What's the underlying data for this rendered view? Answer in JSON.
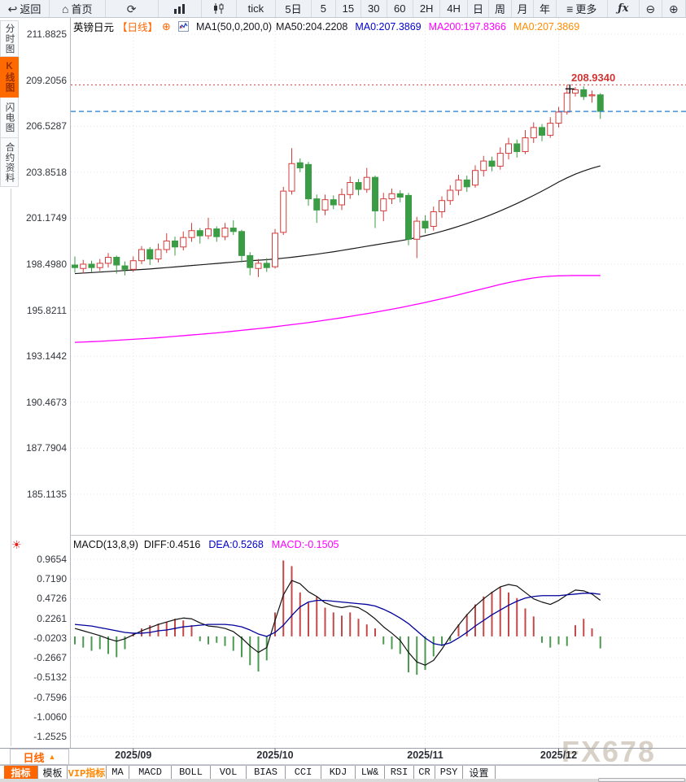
{
  "icons": {
    "back": "↩",
    "home": "⌂",
    "refresh": "⟳",
    "menu": "≡",
    "fx": "ƒx",
    "zoom_out": "⊖",
    "zoom_in": "⊕",
    "add_circle": "⊕",
    "triangle_up": "▲",
    "sun": "☀"
  },
  "toolbar": {
    "items": [
      {
        "name": "back-button",
        "icon": "back",
        "label": "返回"
      },
      {
        "name": "home-button",
        "icon": "home",
        "label": "首页"
      },
      {
        "name": "refresh-button",
        "icon": "refresh",
        "label": ""
      },
      {
        "name": "bar-chart-button",
        "svg": "bars",
        "label": ""
      },
      {
        "name": "candlestick-button",
        "svg": "candles",
        "label": ""
      },
      {
        "name": "period-tick",
        "label": "tick"
      },
      {
        "name": "period-5d",
        "label": "5日"
      },
      {
        "name": "period-5",
        "label": "5"
      },
      {
        "name": "period-15",
        "label": "15"
      },
      {
        "name": "period-30",
        "label": "30"
      },
      {
        "name": "period-60",
        "label": "60"
      },
      {
        "name": "period-2h",
        "label": "2H"
      },
      {
        "name": "period-4h",
        "label": "4H"
      },
      {
        "name": "period-day",
        "label": "日"
      },
      {
        "name": "period-week",
        "label": "周"
      },
      {
        "name": "period-month",
        "label": "月"
      },
      {
        "name": "period-year",
        "label": "年"
      },
      {
        "name": "more-button",
        "icon": "menu",
        "label": "更多"
      },
      {
        "name": "fx-indicator-button",
        "icon": "fx",
        "label": ""
      },
      {
        "name": "zoom-out-button",
        "icon": "zoom_out",
        "label": ""
      },
      {
        "name": "zoom-in-button",
        "icon": "zoom_in",
        "label": ""
      }
    ]
  },
  "sidebar": {
    "tabs": [
      {
        "label": "分时图",
        "active": false
      },
      {
        "label": "K线图",
        "active": true
      },
      {
        "label": "闪电图",
        "active": false
      },
      {
        "label": "合约资料",
        "active": false
      }
    ]
  },
  "chart_header": {
    "symbol": "英镑日元",
    "period_tag": "【日线】",
    "ma_settings": "MA1(50,0,200,0)",
    "ma50_label": "MA50:204.2208",
    "ma0_blue_label": "MA0:207.3869",
    "ma200_label": "MA200:197.8366",
    "ma0_orange_label": "MA0:207.3869"
  },
  "price_marker": {
    "high_label": "208.9340"
  },
  "macd_header": {
    "name": "MACD(13,8,9)",
    "diff_label": "DIFF:0.4516",
    "dea_label": "DEA:0.5268",
    "macd_label": "MACD:-0.1505"
  },
  "bottom": {
    "period_selector": "日线",
    "indicator_tabs": [
      {
        "label": "指标",
        "active": true
      },
      {
        "label": "模板"
      },
      {
        "label": "VIP指标",
        "vip": true
      },
      {
        "label": "MA"
      },
      {
        "label": "MACD"
      },
      {
        "label": "BOLL"
      },
      {
        "label": "VOL"
      },
      {
        "label": "BIAS"
      },
      {
        "label": "CCI"
      },
      {
        "label": "KDJ"
      },
      {
        "label": "LW&"
      },
      {
        "label": "RSI"
      },
      {
        "label": "CR"
      },
      {
        "label": "PSY"
      },
      {
        "label": "设置"
      }
    ]
  },
  "watermark": "FX678",
  "colors": {
    "accent_orange": "#ff6600",
    "up_red": "#d43c3c",
    "down_green": "#3a9c44",
    "ma50_black": "#1a1a1a",
    "ma200_magenta": "#ff00ff",
    "dea_blue": "#00009a",
    "last_price_blue": "#2f86d6",
    "grid": "#e7e4e6"
  },
  "chart_data": {
    "type": "candlestick",
    "title": "英镑日元 日线 (GBP/JPY Daily) with MACD(13,8,9)",
    "x_labels": [
      "2025/09",
      "2025/10",
      "2025/11",
      "2025/12"
    ],
    "y_ticks_main": [
      "211.8825",
      "209.2056",
      "206.5287",
      "203.8518",
      "201.1749",
      "198.4980",
      "195.8211",
      "193.1442",
      "190.4673",
      "187.7904",
      "185.1135"
    ],
    "y_ticks_macd": [
      "0.9654",
      "0.7190",
      "0.4726",
      "0.2261",
      "-0.0203",
      "-0.2667",
      "-0.5132",
      "-0.7596",
      "-1.0060",
      "-1.2525"
    ],
    "ylim_main": [
      185.1135,
      211.8825
    ],
    "ylim_macd": [
      -1.2525,
      0.9654
    ],
    "last_price": 207.3869,
    "high_marker": 208.934,
    "ma50_last": 204.2208,
    "ma200_last": 197.8366,
    "candles": [
      [
        198.45,
        198.95,
        198.0,
        198.3
      ],
      [
        198.25,
        198.75,
        197.95,
        198.5
      ],
      [
        198.5,
        198.7,
        198.05,
        198.3
      ],
      [
        198.3,
        198.8,
        198.1,
        198.55
      ],
      [
        198.55,
        199.15,
        198.3,
        198.9
      ],
      [
        198.9,
        199.0,
        197.95,
        198.45
      ],
      [
        198.4,
        198.65,
        197.85,
        198.2
      ],
      [
        198.2,
        198.95,
        198.05,
        198.7
      ],
      [
        198.7,
        199.55,
        198.5,
        199.35
      ],
      [
        199.35,
        199.5,
        198.45,
        198.8
      ],
      [
        198.8,
        199.7,
        198.6,
        199.35
      ],
      [
        199.35,
        200.3,
        199.15,
        199.85
      ],
      [
        199.85,
        200.1,
        199.0,
        199.5
      ],
      [
        199.5,
        200.4,
        199.3,
        200.05
      ],
      [
        200.05,
        200.9,
        199.8,
        200.45
      ],
      [
        200.45,
        200.6,
        199.7,
        200.15
      ],
      [
        200.15,
        201.2,
        199.95,
        200.55
      ],
      [
        200.55,
        200.7,
        199.8,
        200.1
      ],
      [
        200.1,
        200.9,
        199.9,
        200.6
      ],
      [
        200.6,
        201.05,
        200.2,
        200.4
      ],
      [
        200.4,
        200.5,
        198.6,
        199.0
      ],
      [
        199.0,
        199.2,
        197.85,
        198.3
      ],
      [
        198.25,
        198.8,
        197.75,
        198.55
      ],
      [
        198.55,
        198.85,
        198.05,
        198.3
      ],
      [
        198.35,
        200.55,
        198.25,
        200.3
      ],
      [
        200.35,
        203.0,
        200.2,
        202.75
      ],
      [
        202.75,
        205.25,
        202.55,
        204.35
      ],
      [
        204.4,
        204.65,
        203.85,
        204.1
      ],
      [
        204.3,
        204.45,
        201.9,
        202.3
      ],
      [
        202.3,
        202.55,
        200.9,
        201.65
      ],
      [
        201.65,
        202.55,
        201.35,
        202.25
      ],
      [
        202.25,
        202.5,
        201.7,
        201.95
      ],
      [
        201.95,
        202.9,
        201.65,
        202.55
      ],
      [
        202.55,
        203.6,
        202.3,
        203.25
      ],
      [
        203.25,
        203.45,
        202.5,
        202.85
      ],
      [
        202.85,
        204.1,
        202.65,
        203.55
      ],
      [
        203.55,
        203.65,
        200.6,
        201.6
      ],
      [
        201.6,
        202.65,
        201.0,
        202.3
      ],
      [
        202.3,
        202.9,
        202.0,
        202.6
      ],
      [
        202.6,
        202.8,
        202.1,
        202.4
      ],
      [
        202.5,
        202.65,
        199.6,
        199.95
      ],
      [
        199.95,
        201.25,
        198.85,
        201.0
      ],
      [
        201.0,
        201.35,
        200.3,
        200.6
      ],
      [
        200.7,
        201.85,
        200.45,
        201.55
      ],
      [
        201.55,
        202.45,
        201.2,
        202.2
      ],
      [
        202.2,
        203.1,
        201.95,
        202.8
      ],
      [
        202.8,
        203.7,
        202.5,
        203.4
      ],
      [
        203.4,
        203.65,
        202.7,
        203.0
      ],
      [
        203.1,
        204.25,
        202.95,
        203.95
      ],
      [
        203.95,
        204.8,
        203.6,
        204.5
      ],
      [
        204.5,
        204.75,
        203.9,
        204.2
      ],
      [
        204.2,
        205.3,
        204.0,
        204.95
      ],
      [
        204.95,
        205.85,
        204.6,
        205.5
      ],
      [
        205.5,
        205.75,
        204.7,
        205.05
      ],
      [
        205.05,
        206.3,
        204.9,
        205.85
      ],
      [
        205.85,
        206.75,
        205.55,
        206.45
      ],
      [
        206.45,
        206.65,
        205.65,
        206.0
      ],
      [
        206.0,
        207.05,
        205.85,
        206.7
      ],
      [
        206.7,
        207.65,
        206.45,
        207.35
      ],
      [
        207.35,
        208.934,
        207.2,
        208.45
      ],
      [
        208.45,
        208.8,
        208.25,
        208.65
      ],
      [
        208.65,
        208.85,
        208.05,
        208.25
      ],
      [
        208.3,
        208.6,
        207.9,
        208.35
      ],
      [
        208.35,
        208.45,
        206.95,
        207.3869
      ]
    ],
    "ma50": [
      197.95,
      197.98,
      198.01,
      198.04,
      198.07,
      198.1,
      198.13,
      198.16,
      198.19,
      198.22,
      198.26,
      198.3,
      198.34,
      198.38,
      198.42,
      198.46,
      198.5,
      198.54,
      198.58,
      198.62,
      198.66,
      198.7,
      198.73,
      198.76,
      198.8,
      198.85,
      198.9,
      198.96,
      199.02,
      199.08,
      199.15,
      199.22,
      199.3,
      199.38,
      199.46,
      199.54,
      199.62,
      199.7,
      199.78,
      199.86,
      199.95,
      200.05,
      200.16,
      200.28,
      200.41,
      200.55,
      200.7,
      200.86,
      201.03,
      201.21,
      201.4,
      201.6,
      201.81,
      202.03,
      202.26,
      202.5,
      202.75,
      203.01,
      203.28,
      203.52,
      203.74,
      203.92,
      204.08,
      204.22
    ],
    "ma200": [
      193.95,
      193.97,
      193.99,
      194.01,
      194.04,
      194.07,
      194.1,
      194.13,
      194.16,
      194.19,
      194.22,
      194.26,
      194.3,
      194.34,
      194.38,
      194.42,
      194.46,
      194.5,
      194.55,
      194.6,
      194.65,
      194.7,
      194.75,
      194.8,
      194.86,
      194.92,
      194.98,
      195.04,
      195.1,
      195.17,
      195.24,
      195.31,
      195.38,
      195.46,
      195.54,
      195.62,
      195.7,
      195.79,
      195.88,
      195.97,
      196.07,
      196.17,
      196.27,
      196.38,
      196.49,
      196.6,
      196.72,
      196.84,
      196.96,
      197.08,
      197.2,
      197.32,
      197.43,
      197.53,
      197.62,
      197.7,
      197.76,
      197.8,
      197.82,
      197.83,
      197.84,
      197.84,
      197.84,
      197.84
    ],
    "macd": {
      "diff": [
        0.1,
        0.07,
        0.04,
        0.01,
        -0.03,
        -0.06,
        -0.03,
        0.02,
        0.07,
        0.11,
        0.15,
        0.18,
        0.21,
        0.23,
        0.22,
        0.17,
        0.13,
        0.12,
        0.1,
        0.06,
        -0.02,
        -0.12,
        -0.2,
        -0.14,
        0.2,
        0.52,
        0.7,
        0.66,
        0.56,
        0.5,
        0.42,
        0.38,
        0.36,
        0.38,
        0.36,
        0.3,
        0.22,
        0.12,
        0.04,
        -0.05,
        -0.2,
        -0.32,
        -0.36,
        -0.3,
        -0.16,
        0.0,
        0.14,
        0.27,
        0.38,
        0.47,
        0.55,
        0.62,
        0.65,
        0.63,
        0.55,
        0.47,
        0.43,
        0.4,
        0.45,
        0.52,
        0.58,
        0.57,
        0.53,
        0.4516
      ],
      "dea": [
        0.15,
        0.14,
        0.13,
        0.11,
        0.09,
        0.07,
        0.05,
        0.04,
        0.04,
        0.05,
        0.07,
        0.08,
        0.1,
        0.12,
        0.13,
        0.14,
        0.15,
        0.15,
        0.15,
        0.14,
        0.12,
        0.08,
        0.03,
        0.0,
        0.05,
        0.14,
        0.26,
        0.37,
        0.43,
        0.45,
        0.45,
        0.44,
        0.43,
        0.42,
        0.41,
        0.4,
        0.38,
        0.34,
        0.29,
        0.23,
        0.16,
        0.07,
        -0.02,
        -0.09,
        -0.11,
        -0.08,
        -0.02,
        0.05,
        0.13,
        0.2,
        0.27,
        0.33,
        0.39,
        0.44,
        0.48,
        0.5,
        0.51,
        0.51,
        0.51,
        0.52,
        0.53,
        0.54,
        0.54,
        0.5268
      ],
      "hist": [
        -0.1,
        -0.14,
        -0.18,
        -0.16,
        -0.22,
        -0.26,
        -0.16,
        0.04,
        0.1,
        0.14,
        0.16,
        0.18,
        0.22,
        0.2,
        0.14,
        -0.06,
        -0.1,
        -0.08,
        -0.12,
        -0.18,
        -0.26,
        -0.36,
        -0.44,
        -0.3,
        0.3,
        0.95,
        0.88,
        0.55,
        0.42,
        0.5,
        0.36,
        0.3,
        0.26,
        0.3,
        0.22,
        0.15,
        0.1,
        -0.1,
        -0.16,
        -0.22,
        -0.45,
        -0.48,
        -0.42,
        -0.25,
        -0.12,
        -0.06,
        0.15,
        0.28,
        0.4,
        0.5,
        0.56,
        0.62,
        0.55,
        0.48,
        0.35,
        0.25,
        -0.08,
        -0.14,
        -0.1,
        -0.12,
        0.14,
        0.22,
        0.1,
        -0.15
      ]
    }
  }
}
